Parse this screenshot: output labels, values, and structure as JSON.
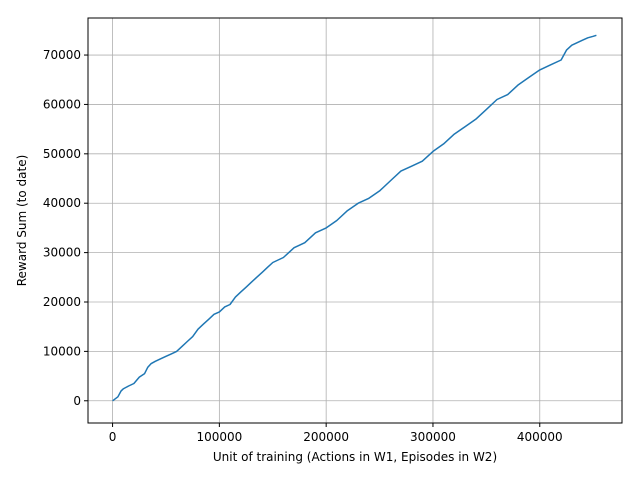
{
  "chart_data": {
    "type": "line",
    "title": "",
    "xlabel": "Unit of training (Actions in W1, Episodes in W2)",
    "ylabel": "Reward Sum (to date)",
    "xlim": [
      -23000,
      477000
    ],
    "ylim": [
      -4500,
      77500
    ],
    "xticks": [
      0,
      100000,
      200000,
      300000,
      400000
    ],
    "xtick_labels": [
      "0",
      "100000",
      "200000",
      "300000",
      "400000"
    ],
    "yticks": [
      0,
      10000,
      20000,
      30000,
      40000,
      50000,
      60000,
      70000
    ],
    "ytick_labels": [
      "0",
      "10000",
      "20000",
      "30000",
      "40000",
      "50000",
      "60000",
      "70000"
    ],
    "grid": true,
    "legend": "none",
    "series": [
      {
        "color": "#1f77b4",
        "x": [
          0,
          5000,
          8000,
          10000,
          15000,
          20000,
          25000,
          30000,
          33000,
          36000,
          40000,
          45000,
          50000,
          55000,
          60000,
          65000,
          70000,
          75000,
          80000,
          85000,
          90000,
          95000,
          100000,
          105000,
          110000,
          115000,
          120000,
          125000,
          130000,
          135000,
          140000,
          145000,
          150000,
          155000,
          160000,
          165000,
          170000,
          175000,
          180000,
          185000,
          190000,
          200000,
          210000,
          220000,
          230000,
          240000,
          250000,
          260000,
          270000,
          280000,
          290000,
          300000,
          310000,
          320000,
          330000,
          340000,
          350000,
          360000,
          370000,
          380000,
          390000,
          400000,
          410000,
          420000,
          425000,
          430000,
          440000,
          445000,
          450000,
          453000
        ],
        "y": [
          0,
          800,
          2000,
          2400,
          3000,
          3500,
          4800,
          5500,
          6800,
          7500,
          8000,
          8500,
          9000,
          9500,
          10000,
          11000,
          12000,
          13000,
          14500,
          15500,
          16500,
          17500,
          18000,
          19000,
          19500,
          21000,
          22000,
          23000,
          24000,
          25000,
          26000,
          27000,
          28000,
          28500,
          29000,
          30000,
          31000,
          31500,
          32000,
          33000,
          34000,
          35000,
          36500,
          38500,
          40000,
          41000,
          42500,
          44500,
          46500,
          47500,
          48500,
          50500,
          52000,
          54000,
          55500,
          57000,
          59000,
          61000,
          62000,
          64000,
          65500,
          67000,
          68000,
          69000,
          71000,
          72000,
          73000,
          73500,
          73800,
          74000
        ]
      }
    ]
  }
}
